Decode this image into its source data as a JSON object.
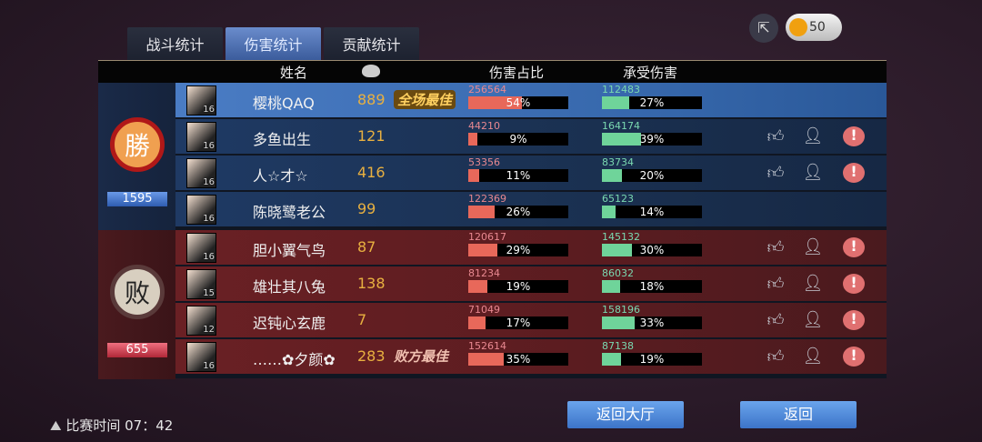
{
  "tabs": [
    "战斗统计",
    "伤害统计",
    "贡献统计"
  ],
  "active_tab": 1,
  "header": {
    "name": "姓名",
    "damage_share": "伤害占比",
    "damage_taken": "承受伤害"
  },
  "top": {
    "share_icon": "share-icon",
    "currency_icon": "gold-ingot-icon",
    "currency": "50"
  },
  "teams": {
    "win": {
      "label": "勝",
      "score": "1595"
    },
    "lose": {
      "label": "败",
      "score": "655"
    }
  },
  "players": [
    {
      "team": "win",
      "level": "16",
      "name": "樱桃QAQ",
      "kills": "889",
      "tag": "全场最佳",
      "damage": "256564",
      "damage_pct": 54,
      "damage_pct_label": "54%",
      "taken": "112483",
      "taken_pct": 27,
      "taken_pct_label": "27%",
      "actions": false
    },
    {
      "team": "win",
      "level": "16",
      "name": "多鱼出生",
      "kills": "121",
      "tag": "",
      "damage": "44210",
      "damage_pct": 9,
      "damage_pct_label": "9%",
      "taken": "164174",
      "taken_pct": 39,
      "taken_pct_label": "39%",
      "actions": true
    },
    {
      "team": "win",
      "level": "16",
      "name": "人☆才☆",
      "kills": "416",
      "tag": "",
      "damage": "53356",
      "damage_pct": 11,
      "damage_pct_label": "11%",
      "taken": "83734",
      "taken_pct": 20,
      "taken_pct_label": "20%",
      "actions": true
    },
    {
      "team": "win",
      "level": "16",
      "name": "陈晓鹭老公",
      "kills": "99",
      "tag": "",
      "damage": "122369",
      "damage_pct": 26,
      "damage_pct_label": "26%",
      "taken": "65123",
      "taken_pct": 14,
      "taken_pct_label": "14%",
      "actions": false
    },
    {
      "team": "lose",
      "level": "16",
      "name": "胆小翼气鸟",
      "kills": "87",
      "tag": "",
      "damage": "120617",
      "damage_pct": 29,
      "damage_pct_label": "29%",
      "taken": "145132",
      "taken_pct": 30,
      "taken_pct_label": "30%",
      "actions": true
    },
    {
      "team": "lose",
      "level": "15",
      "name": "雄壮其八兔",
      "kills": "138",
      "tag": "",
      "damage": "81234",
      "damage_pct": 19,
      "damage_pct_label": "19%",
      "taken": "86032",
      "taken_pct": 18,
      "taken_pct_label": "18%",
      "actions": true
    },
    {
      "team": "lose",
      "level": "12",
      "name": "迟钝心玄鹿",
      "kills": "7",
      "tag": "",
      "damage": "71049",
      "damage_pct": 17,
      "damage_pct_label": "17%",
      "taken": "158196",
      "taken_pct": 33,
      "taken_pct_label": "33%",
      "actions": true
    },
    {
      "team": "lose",
      "level": "16",
      "name": "……✿夕颜✿",
      "kills": "283",
      "tag": "败方最佳",
      "damage": "152614",
      "damage_pct": 35,
      "damage_pct_label": "35%",
      "taken": "87138",
      "taken_pct": 19,
      "taken_pct_label": "19%",
      "actions": true
    }
  ],
  "footer": {
    "time_label": "比赛时间 07：42",
    "lobby_button": "返回大厅",
    "back_button": "返回"
  }
}
